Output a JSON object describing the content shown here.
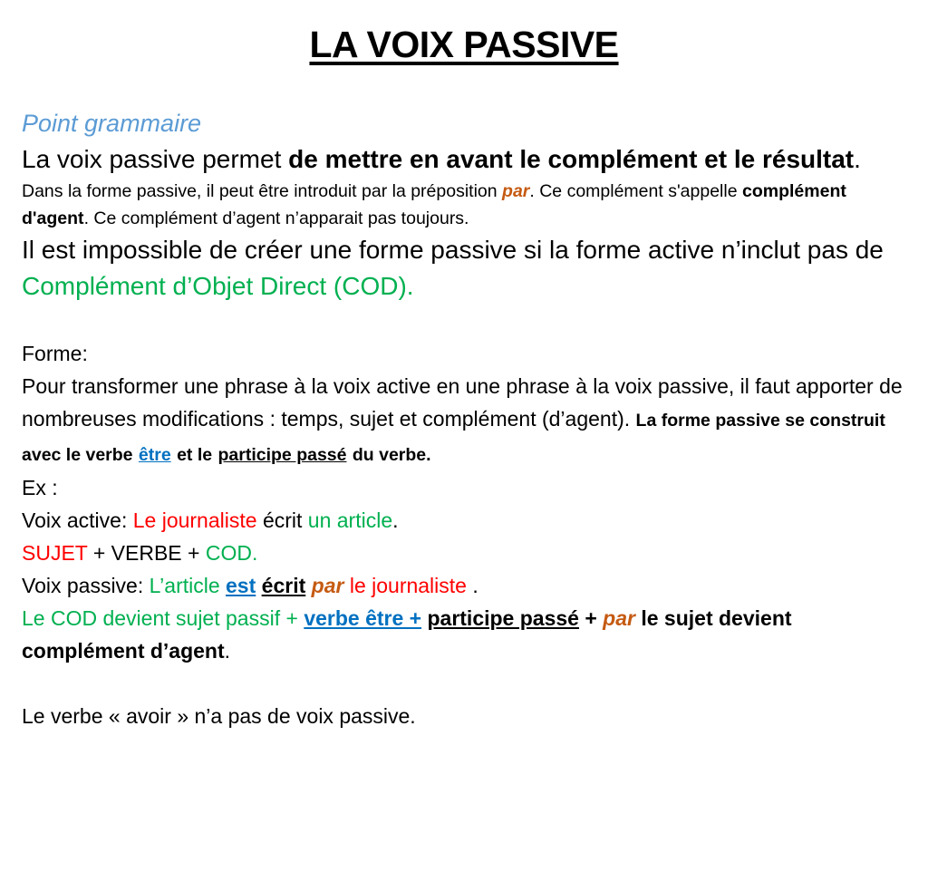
{
  "title": "LA VOIX PASSIVE",
  "section": "Point grammaire",
  "p1": [
    "La voix passive permet",
    "de mettre en avant le complément et le résultat",
    "."
  ],
  "p2": [
    "Dans la forme passive, il peut être introduit par la préposition",
    "par",
    ". Ce complément s'appelle",
    "complément d'agent",
    ". Ce complément d’agent n’apparait pas toujours."
  ],
  "p3": [
    "Il est impossible de créer une forme passive si la forme active n’inclut pas de",
    "Complément d’Objet Direct (COD)."
  ],
  "form_label": "Forme:",
  "p4": [
    "Pour transformer une phrase à la voix active en une phrase à la voix passive, il faut apporter de nombreuses modifications : temps, sujet et complément (d’agent).",
    "La forme passive se construit avec le verbe",
    "être",
    "et le",
    "participe passé",
    "du verbe."
  ],
  "ex_label": "Ex :",
  "active": [
    "Voix active:",
    "Le journaliste",
    "écrit",
    "un article",
    "."
  ],
  "formula1": [
    "SUJET",
    "+ VERBE +",
    "COD."
  ],
  "passive": [
    "Voix passive:",
    "L’article",
    "est",
    "écrit",
    "par",
    "le journaliste",
    "."
  ],
  "formula2": [
    "Le COD devient sujet passif +",
    "verbe être +",
    "participe passé",
    "+",
    "par",
    "le sujet devient complément d’agent",
    "."
  ],
  "note": "Le verbe « avoir » n’a pas de voix passive."
}
